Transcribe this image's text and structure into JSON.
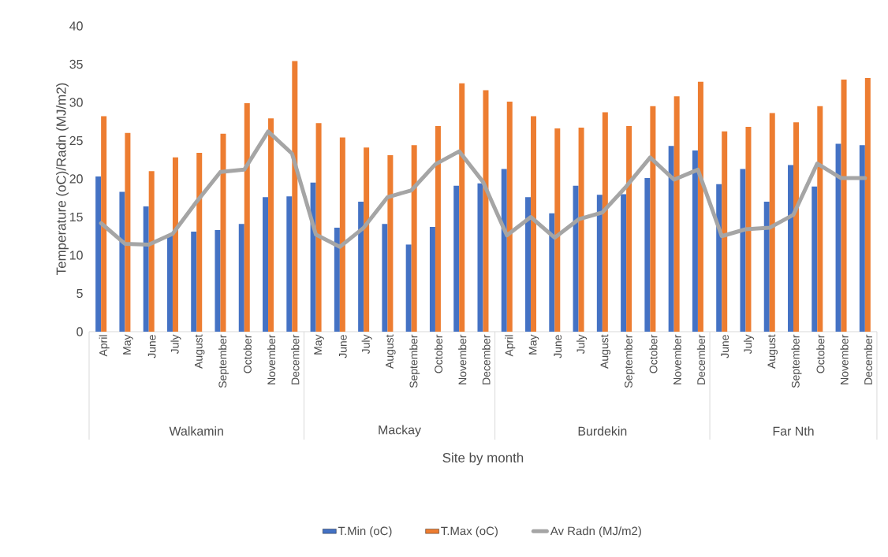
{
  "chart_data": {
    "type": "bar",
    "xlabel": "Site by month",
    "ylabel": "Temperature (oC)/Radn (MJ/m2)",
    "categories": [
      "April",
      "May",
      "June",
      "July",
      "August",
      "September",
      "October",
      "November",
      "December",
      "May",
      "June",
      "July",
      "August",
      "September",
      "October",
      "November",
      "December",
      "April",
      "May",
      "June",
      "July",
      "August",
      "September",
      "October",
      "November",
      "December",
      "June",
      "July",
      "August",
      "September",
      "October",
      "November",
      "December"
    ],
    "series": [
      {
        "name": "T.Min (oC)",
        "color": "#4472c4",
        "values": [
          20.3,
          18.3,
          16.4,
          12.6,
          13.1,
          13.3,
          14.1,
          17.6,
          17.7,
          19.5,
          13.6,
          17.0,
          14.1,
          11.4,
          13.7,
          19.1,
          19.4,
          21.3,
          17.6,
          15.5,
          19.1,
          17.9,
          18.0,
          20.1,
          24.3,
          23.7,
          19.3,
          21.3,
          17.0,
          21.8,
          19.0,
          24.6,
          24.4
        ]
      },
      {
        "name": "T.Max (oC)",
        "color": "#ed7d31",
        "values": [
          28.2,
          26.0,
          21.0,
          22.8,
          23.4,
          25.9,
          29.9,
          27.9,
          35.4,
          27.3,
          25.4,
          24.1,
          23.1,
          24.4,
          26.9,
          32.5,
          31.6,
          30.1,
          28.2,
          26.6,
          26.7,
          28.7,
          26.9,
          29.5,
          30.8,
          32.7,
          26.2,
          26.8,
          28.6,
          27.4,
          29.5,
          33.0,
          33.2
        ]
      },
      {
        "name": "Av Radn (MJ/m2)",
        "color": "#a5a5a5",
        "type": "line",
        "values": [
          14.2,
          11.5,
          11.4,
          12.8,
          17.0,
          20.9,
          21.2,
          26.2,
          23.3,
          12.7,
          11.1,
          13.6,
          17.6,
          18.5,
          21.9,
          23.6,
          19.6,
          12.6,
          15.0,
          12.3,
          14.7,
          15.6,
          19.0,
          22.8,
          19.9,
          21.2,
          12.5,
          13.4,
          13.6,
          15.3,
          22.0,
          20.1,
          20.1
        ]
      }
    ],
    "ylim": [
      0,
      40
    ],
    "yticks": [
      0,
      5,
      10,
      15,
      20,
      25,
      30,
      35,
      40
    ],
    "legend": "bottom",
    "annotations": [
      "Walkamin",
      "Mackay",
      "Burdekin",
      "Far Nth"
    ]
  }
}
